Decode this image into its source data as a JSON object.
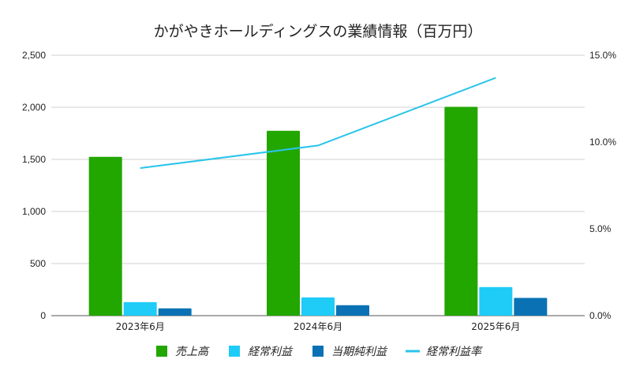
{
  "chart_data": {
    "type": "bar",
    "title": "かがやきホールディングスの業績情報（百万円）",
    "categories": [
      "2023年6月",
      "2024年6月",
      "2025年6月"
    ],
    "series": [
      {
        "name": "売上高",
        "type": "bar",
        "axis": "left",
        "color": "#22a600",
        "values": [
          1525,
          1775,
          2005
        ]
      },
      {
        "name": "経常利益",
        "type": "bar",
        "axis": "left",
        "color": "#1fcbf7",
        "values": [
          130,
          175,
          275
        ]
      },
      {
        "name": "当期純利益",
        "type": "bar",
        "axis": "left",
        "color": "#0a72b4",
        "values": [
          70,
          100,
          170
        ]
      },
      {
        "name": "経常利益率",
        "type": "line",
        "axis": "right",
        "color": "#29c4ea",
        "values": [
          8.5,
          9.8,
          13.7
        ]
      }
    ],
    "y_left": {
      "min": 0,
      "max": 2500,
      "ticks": [
        0,
        500,
        1000,
        1500,
        2000,
        2500
      ],
      "tick_labels": [
        "0",
        "500",
        "1,000",
        "1,500",
        "2,000",
        "2,500"
      ]
    },
    "y_right": {
      "min": 0,
      "max": 15,
      "ticks": [
        0,
        5,
        10,
        15
      ],
      "tick_labels": [
        "0.0%",
        "5.0%",
        "10.0%",
        "15.0%"
      ]
    },
    "grid": true,
    "legend_position": "bottom"
  }
}
